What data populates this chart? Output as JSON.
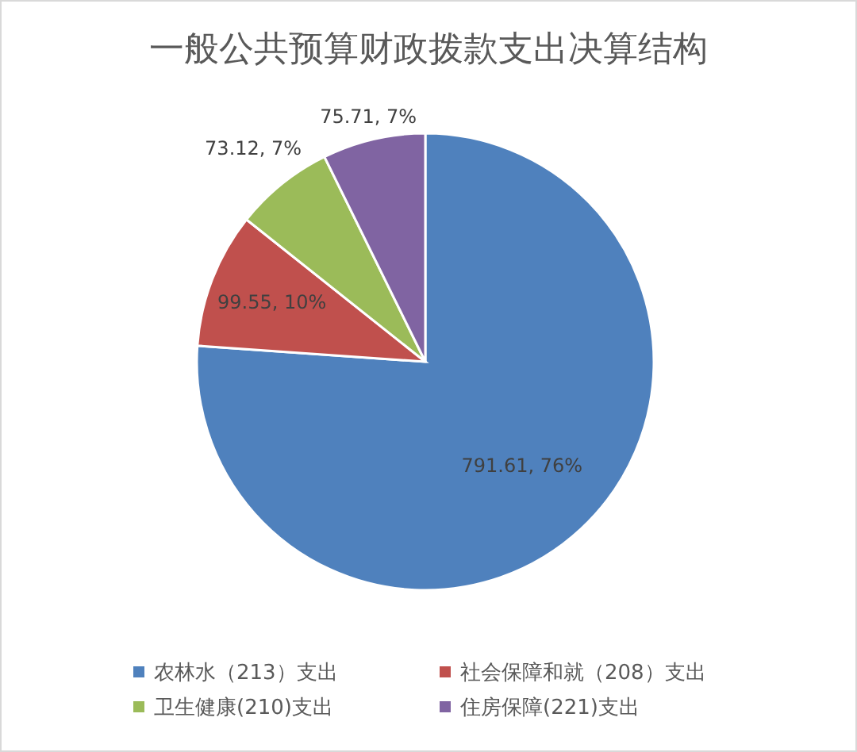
{
  "chart_data": {
    "type": "pie",
    "title": "一般公共预算财政拨款支出决算结构",
    "categories": [
      "农林水（213）支出",
      "社会保障和就（208）支出",
      "卫生健康(210)支出",
      "住房保障(221)支出"
    ],
    "values": [
      791.61,
      99.55,
      73.12,
      75.71
    ],
    "colors": [
      "#4f81bd",
      "#c0504d",
      "#9bbb59",
      "#8064a2"
    ],
    "value_labels": [
      "791.61, 76%",
      "99.55, 10%",
      "73.12, 7%",
      "75.71, 7%"
    ],
    "legend": "bottom"
  }
}
